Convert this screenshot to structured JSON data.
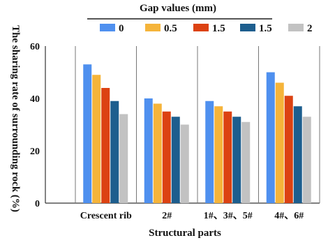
{
  "chart_data": {
    "type": "bar",
    "legend_title": "Gap values (mm)",
    "xlabel": "Structural parts",
    "ylabel": "The sharing rate of surrounding rock (%)",
    "ylim": [
      0,
      60
    ],
    "yticks": [
      "0",
      "20",
      "40",
      "60"
    ],
    "grid": "vertical separators between categories",
    "legend_position": "top",
    "categories": [
      "Crescent rib",
      "2#",
      "1#、3#、5#",
      "4#、6#"
    ],
    "series": [
      {
        "name": "0",
        "color": "#4f90ef",
        "values": [
          53,
          40,
          39,
          50
        ]
      },
      {
        "name": "0.5",
        "color": "#f5b43a",
        "values": [
          49,
          38,
          37,
          46
        ]
      },
      {
        "name": "1.5",
        "color": "#dc4212",
        "values": [
          44,
          35,
          35,
          41
        ]
      },
      {
        "name": "1.5",
        "color": "#1d5e8e",
        "values": [
          39,
          33,
          33,
          37
        ]
      },
      {
        "name": "2",
        "color": "#c2c2c2",
        "values": [
          34,
          30,
          31,
          33
        ]
      }
    ]
  }
}
